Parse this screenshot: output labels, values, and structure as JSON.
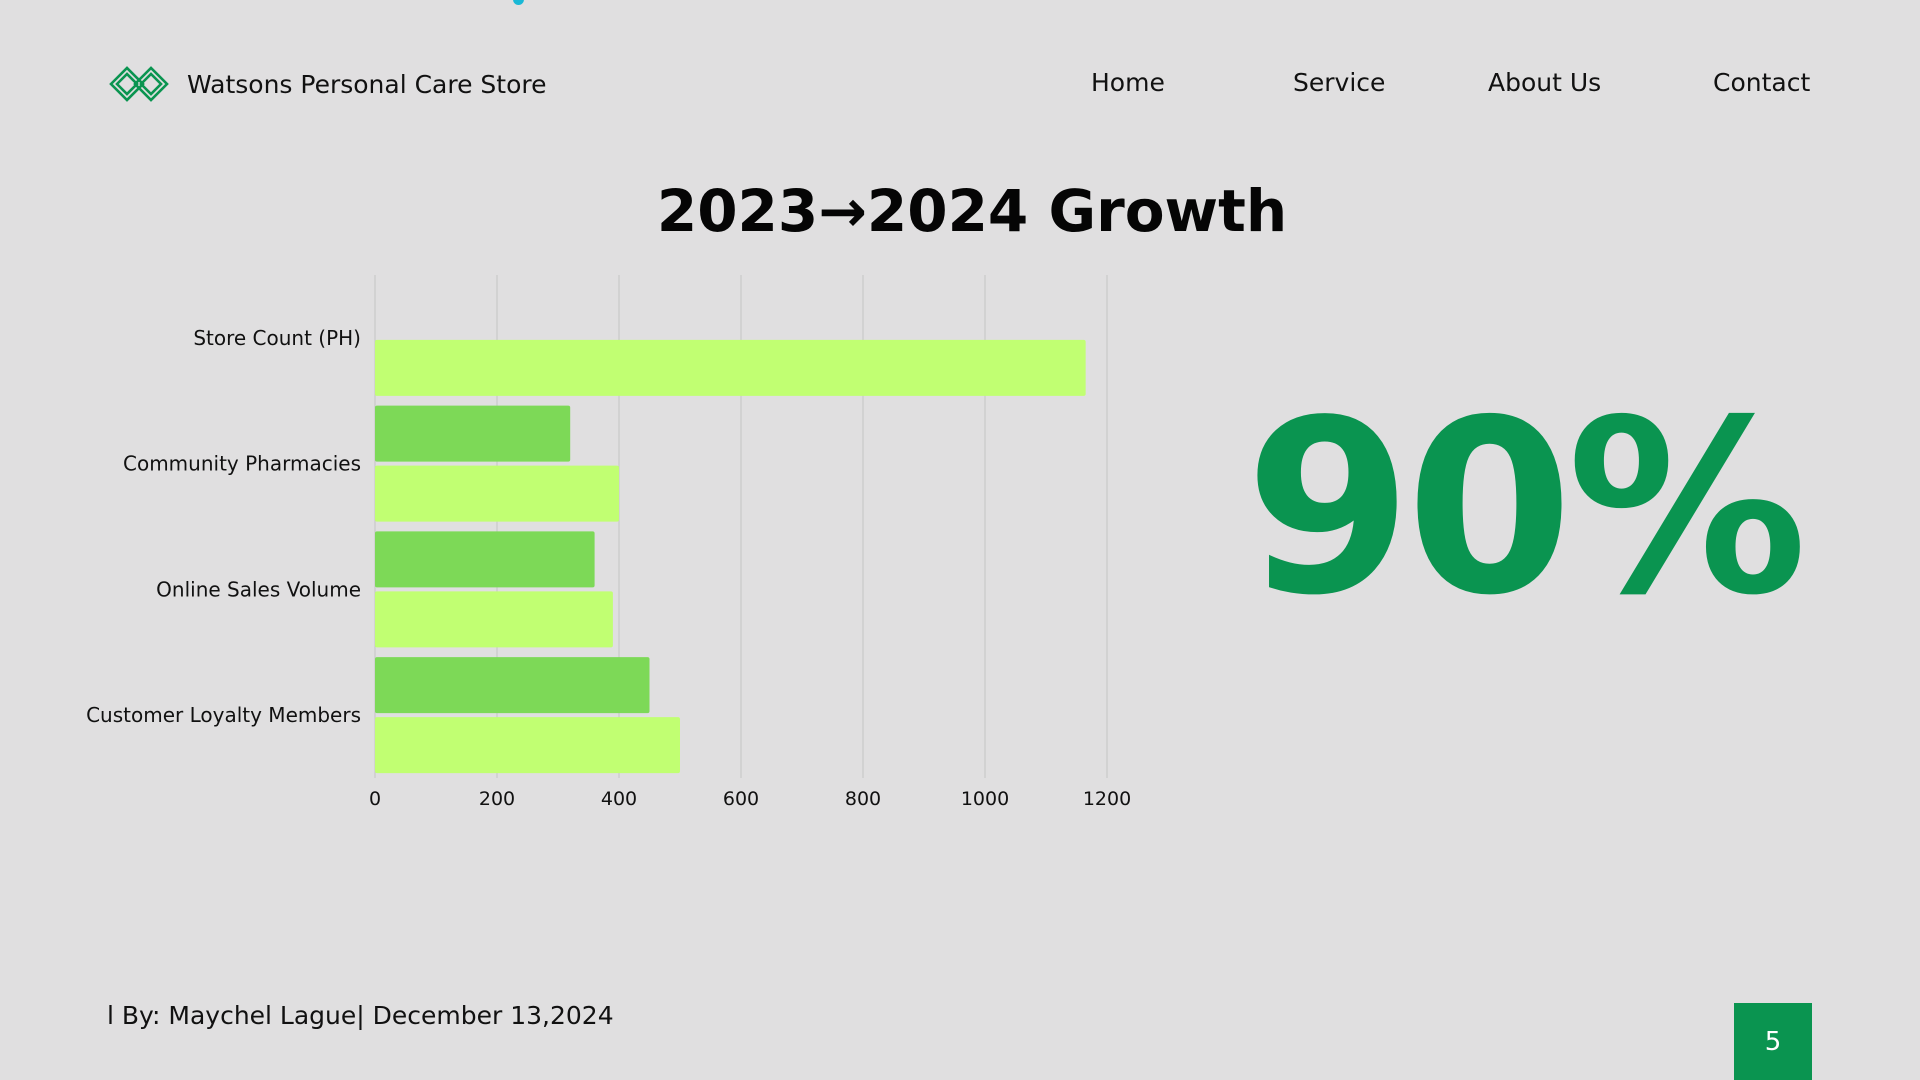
{
  "header": {
    "brand_name": "Watsons Personal Care Store",
    "logo_icon": "interlocking-diamond-logo",
    "nav": [
      {
        "label": "Home"
      },
      {
        "label": "Service"
      },
      {
        "label": "About Us"
      },
      {
        "label": "Contact"
      }
    ]
  },
  "slide": {
    "title": "2023→2024 Growth",
    "big_stat": "90%",
    "footer": "l By: Maychel Lague| December 13,2024",
    "page_number": "5"
  },
  "colors": {
    "background": "#e0dfe0",
    "brand_green": "#0a9450",
    "series_2023": "#7dd957",
    "series_2024": "#c1ff72"
  },
  "chart_data": {
    "type": "bar",
    "orientation": "horizontal",
    "title": "2023→2024 Growth",
    "categories": [
      "Store Count (PH)",
      "Community Pharmacies",
      "Online Sales Volume",
      "Customer Loyalty Members"
    ],
    "series": [
      {
        "values": [
          null,
          320,
          360,
          450
        ],
        "color": "#7dd957"
      },
      {
        "values": [
          1165,
          400,
          390,
          500
        ],
        "color": "#c1ff72"
      }
    ],
    "xticks": [
      0,
      200,
      400,
      600,
      800,
      1000,
      1200
    ],
    "xlim": [
      0,
      1200
    ],
    "grid": true,
    "legend": "none"
  }
}
